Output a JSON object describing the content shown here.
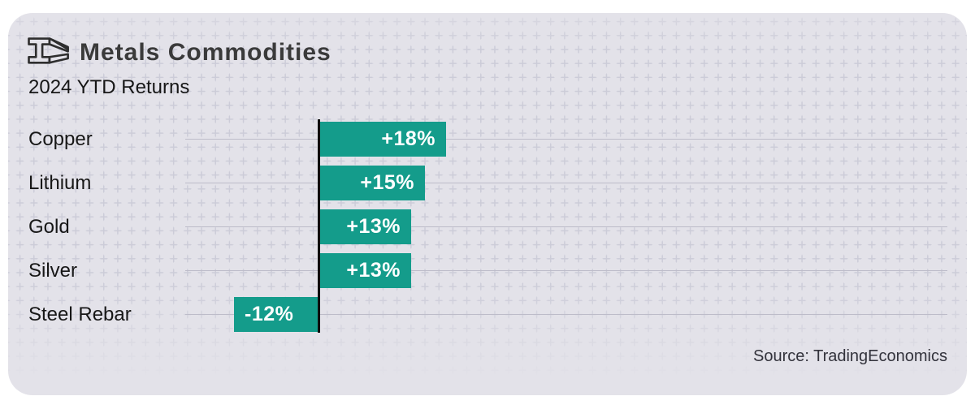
{
  "header": {
    "icon": "steel-beam-icon",
    "title": "Metals Commodities",
    "subtitle": "2024 YTD Returns"
  },
  "chart_data": {
    "type": "bar",
    "orientation": "horizontal",
    "title": "Metals Commodities",
    "subtitle": "2024 YTD Returns",
    "unit": "%",
    "categories": [
      "Copper",
      "Lithium",
      "Gold",
      "Silver",
      "Steel Rebar"
    ],
    "values": [
      18,
      15,
      13,
      13,
      -12
    ],
    "value_labels": [
      "+18%",
      "+15%",
      "+13%",
      "+13%",
      "-12%"
    ],
    "xlim": [
      -12,
      18
    ],
    "axis_at_zero": true,
    "grid": "horizontal row lines",
    "legend": "none"
  },
  "footer": {
    "source": "Source: TradingEconomics"
  },
  "colors": {
    "bar": "#149c8b",
    "value_text": "#ffffff",
    "axis": "#0e0e0e",
    "gridline": "#bdbcc9",
    "card_background": "#e3e2e9",
    "pattern_plus": "#ccccd8",
    "title_text": "#3a3a3a",
    "body_text": "#171717",
    "page_background": "#ffffff"
  }
}
